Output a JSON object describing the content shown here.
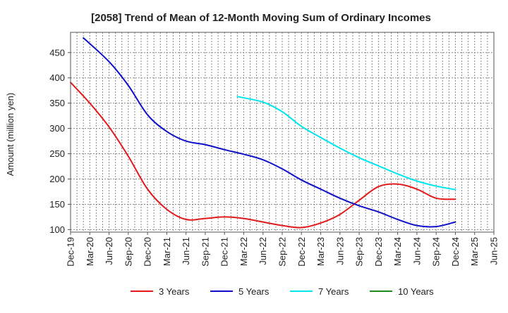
{
  "chart_data": {
    "type": "line",
    "title": "[2058]  Trend of Mean of 12-Month Moving Sum of Ordinary Incomes",
    "xlabel": "",
    "ylabel": "Amount (million yen)",
    "ylim": [
      95,
      490
    ],
    "yticks": [
      100,
      150,
      200,
      250,
      300,
      350,
      400,
      450
    ],
    "xlim": [
      0,
      66
    ],
    "xtick_positions": [
      0,
      3,
      6,
      9,
      12,
      15,
      18,
      21,
      24,
      27,
      30,
      33,
      36,
      39,
      42,
      45,
      48,
      51,
      54,
      57,
      60,
      63,
      66
    ],
    "xtick_labels": [
      "Dec-19",
      "Mar-20",
      "Jun-20",
      "Sep-20",
      "Dec-20",
      "Mar-21",
      "Jun-21",
      "Sep-21",
      "Dec-21",
      "Mar-22",
      "Jun-22",
      "Sep-22",
      "Dec-22",
      "Mar-23",
      "Jun-23",
      "Sep-23",
      "Dec-23",
      "Mar-24",
      "Jun-24",
      "Sep-24",
      "Dec-24",
      "Mar-25",
      "Jun-25"
    ],
    "grid": true,
    "legend_position": "bottom",
    "series": [
      {
        "name": "3 Years",
        "color": "#e31a1c",
        "x": [
          0,
          3,
          6,
          9,
          12,
          15,
          18,
          21,
          24,
          27,
          30,
          33,
          36,
          39,
          42,
          45,
          48,
          51,
          54,
          57,
          60
        ],
        "values": [
          391,
          350,
          303,
          245,
          180,
          140,
          120,
          122,
          125,
          122,
          115,
          108,
          104,
          113,
          130,
          158,
          185,
          190,
          180,
          162,
          160
        ]
      },
      {
        "name": "5 Years",
        "color": "#1010c8",
        "x": [
          2,
          6,
          9,
          12,
          15,
          18,
          21,
          24,
          27,
          30,
          33,
          36,
          39,
          42,
          45,
          48,
          51,
          54,
          57,
          60
        ],
        "values": [
          479,
          432,
          385,
          327,
          294,
          275,
          268,
          258,
          249,
          238,
          220,
          198,
          180,
          162,
          147,
          135,
          120,
          108,
          106,
          115
        ]
      },
      {
        "name": "7 Years",
        "color": "#00e5ee",
        "x": [
          26,
          30,
          33,
          36,
          39,
          42,
          45,
          48,
          51,
          54,
          57,
          60
        ],
        "values": [
          363,
          352,
          333,
          304,
          282,
          261,
          242,
          226,
          210,
          196,
          186,
          179
        ]
      },
      {
        "name": "10 Years",
        "color": "#1a8c1a",
        "x": [],
        "values": []
      }
    ]
  }
}
